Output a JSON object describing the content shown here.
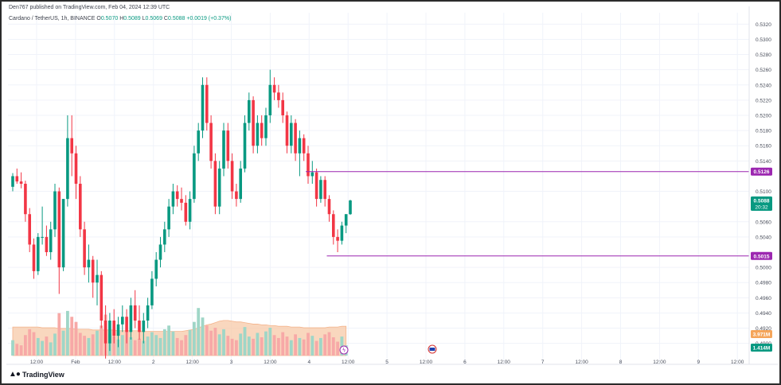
{
  "header": {
    "published": "Den767 published on TradingView.com, Feb 04, 2024 12:39 UTC"
  },
  "symbol": {
    "name": "Cardano / TetherUS, 1h, BINANCE",
    "o_label": "O",
    "o": "0.5070",
    "h_label": "H",
    "h": "0.5089",
    "l_label": "L",
    "l": "0.5069",
    "c_label": "C",
    "c": "0.5088",
    "change": "+0.0019 (+0.37%)"
  },
  "price_labels": {
    "resistance": "0.5126",
    "current": "0.5088",
    "countdown": "20:32",
    "support": "0.5015",
    "volume_ma": "3.971M",
    "volume": "1.414M"
  },
  "footer": {
    "logo_text": "TradingView"
  },
  "colors": {
    "up": "#089981",
    "down": "#f23645",
    "up_volume": "#9fd6c7",
    "down_volume": "#f7a9a7",
    "volume_ma_fill": "#f7c9a8",
    "level_line": "#9c27b0",
    "grid": "#f0f3fa"
  },
  "chart_data": {
    "type": "candlestick",
    "timeframe": "1h",
    "y_ticks": [
      "0.5320",
      "0.5300",
      "0.5280",
      "0.5260",
      "0.5240",
      "0.5220",
      "0.5200",
      "0.5180",
      "0.5160",
      "0.5140",
      "0.5100",
      "0.5060",
      "0.5040",
      "0.5000",
      "0.4980",
      "0.4960",
      "0.4940",
      "0.4920",
      "0.4900"
    ],
    "x_ticks": [
      "12:00",
      "Feb",
      "12:00",
      "2",
      "12:00",
      "3",
      "12:00",
      "4",
      "12:00",
      "5",
      "12:00",
      "6",
      "12:00",
      "7",
      "12:00",
      "8",
      "12:00",
      "9",
      "12:00"
    ],
    "ylim": [
      0.4885,
      0.5335
    ],
    "horizontal_levels": [
      0.5126,
      0.5015
    ],
    "ohlc": [
      [
        0.5106,
        0.5124,
        0.51,
        0.512
      ],
      [
        0.512,
        0.513,
        0.511,
        0.5113
      ],
      [
        0.5113,
        0.5125,
        0.5104,
        0.511
      ],
      [
        0.511,
        0.5114,
        0.506,
        0.507
      ],
      [
        0.507,
        0.5078,
        0.502,
        0.503
      ],
      [
        0.503,
        0.5038,
        0.4985,
        0.4995
      ],
      [
        0.4995,
        0.5045,
        0.499,
        0.504
      ],
      [
        0.504,
        0.508,
        0.503,
        0.504
      ],
      [
        0.504,
        0.5055,
        0.5015,
        0.502
      ],
      [
        0.502,
        0.506,
        0.501,
        0.505
      ],
      [
        0.505,
        0.511,
        0.504,
        0.51
      ],
      [
        0.51,
        0.5105,
        0.4965,
        0.5
      ],
      [
        0.5,
        0.509,
        0.4995,
        0.509
      ],
      [
        0.509,
        0.52,
        0.508,
        0.517
      ],
      [
        0.517,
        0.52,
        0.512,
        0.515
      ],
      [
        0.515,
        0.516,
        0.509,
        0.511
      ],
      [
        0.511,
        0.512,
        0.504,
        0.505
      ],
      [
        0.505,
        0.506,
        0.499,
        0.5
      ],
      [
        0.5,
        0.503,
        0.498,
        0.501
      ],
      [
        0.501,
        0.5015,
        0.496,
        0.498
      ],
      [
        0.498,
        0.501,
        0.495,
        0.499
      ],
      [
        0.499,
        0.4995,
        0.492,
        0.493
      ],
      [
        0.493,
        0.495,
        0.488,
        0.49
      ],
      [
        0.49,
        0.494,
        0.489,
        0.493
      ],
      [
        0.493,
        0.4945,
        0.49,
        0.491
      ],
      [
        0.491,
        0.4935,
        0.4895,
        0.4925
      ],
      [
        0.4925,
        0.495,
        0.4915,
        0.4935
      ],
      [
        0.4935,
        0.4945,
        0.49,
        0.4915
      ],
      [
        0.4915,
        0.496,
        0.4905,
        0.495
      ],
      [
        0.495,
        0.497,
        0.492,
        0.493
      ],
      [
        0.493,
        0.495,
        0.4905,
        0.4915
      ],
      [
        0.4915,
        0.494,
        0.49,
        0.493
      ],
      [
        0.493,
        0.496,
        0.492,
        0.495
      ],
      [
        0.495,
        0.4995,
        0.4945,
        0.4985
      ],
      [
        0.4985,
        0.502,
        0.4975,
        0.501
      ],
      [
        0.501,
        0.504,
        0.5,
        0.503
      ],
      [
        0.503,
        0.506,
        0.502,
        0.505
      ],
      [
        0.505,
        0.509,
        0.504,
        0.508
      ],
      [
        0.508,
        0.511,
        0.507,
        0.51
      ],
      [
        0.51,
        0.5108,
        0.508,
        0.509
      ],
      [
        0.509,
        0.5105,
        0.5075,
        0.5085
      ],
      [
        0.5085,
        0.5095,
        0.5055,
        0.506
      ],
      [
        0.506,
        0.51,
        0.505,
        0.509
      ],
      [
        0.509,
        0.516,
        0.5085,
        0.515
      ],
      [
        0.515,
        0.519,
        0.514,
        0.518
      ],
      [
        0.518,
        0.525,
        0.517,
        0.524
      ],
      [
        0.524,
        0.525,
        0.518,
        0.519
      ],
      [
        0.519,
        0.52,
        0.513,
        0.514
      ],
      [
        0.514,
        0.515,
        0.507,
        0.508
      ],
      [
        0.508,
        0.514,
        0.507,
        0.513
      ],
      [
        0.513,
        0.519,
        0.512,
        0.518
      ],
      [
        0.518,
        0.519,
        0.513,
        0.514
      ],
      [
        0.514,
        0.515,
        0.509,
        0.51
      ],
      [
        0.51,
        0.511,
        0.508,
        0.509
      ],
      [
        0.509,
        0.514,
        0.5085,
        0.513
      ],
      [
        0.513,
        0.52,
        0.5125,
        0.519
      ],
      [
        0.519,
        0.523,
        0.518,
        0.522
      ],
      [
        0.522,
        0.5225,
        0.515,
        0.516
      ],
      [
        0.516,
        0.52,
        0.515,
        0.519
      ],
      [
        0.519,
        0.52,
        0.516,
        0.517
      ],
      [
        0.517,
        0.521,
        0.516,
        0.52
      ],
      [
        0.52,
        0.526,
        0.519,
        0.524
      ],
      [
        0.524,
        0.525,
        0.522,
        0.523
      ],
      [
        0.523,
        0.524,
        0.521,
        0.522
      ],
      [
        0.522,
        0.523,
        0.519,
        0.52
      ],
      [
        0.52,
        0.5205,
        0.515,
        0.516
      ],
      [
        0.516,
        0.52,
        0.515,
        0.519
      ],
      [
        0.519,
        0.5195,
        0.514,
        0.515
      ],
      [
        0.515,
        0.518,
        0.512,
        0.517
      ],
      [
        0.517,
        0.5175,
        0.514,
        0.515
      ],
      [
        0.515,
        0.516,
        0.511,
        0.512
      ],
      [
        0.512,
        0.514,
        0.511,
        0.5125
      ],
      [
        0.5125,
        0.513,
        0.508,
        0.509
      ],
      [
        0.509,
        0.512,
        0.5085,
        0.5115
      ],
      [
        0.5115,
        0.512,
        0.508,
        0.509
      ],
      [
        0.509,
        0.5095,
        0.506,
        0.507
      ],
      [
        0.507,
        0.5075,
        0.503,
        0.504
      ],
      [
        0.504,
        0.505,
        0.502,
        0.5035
      ],
      [
        0.5035,
        0.506,
        0.503,
        0.5055
      ],
      [
        0.5055,
        0.507,
        0.5045,
        0.507
      ],
      [
        0.507,
        0.5089,
        0.5069,
        0.5088
      ]
    ],
    "volume": [
      2.1,
      1.6,
      1.4,
      2.8,
      3.6,
      3.2,
      2.4,
      2.0,
      2.6,
      1.8,
      3.0,
      5.8,
      3.4,
      6.1,
      5.3,
      4.6,
      3.1,
      2.7,
      2.4,
      2.9,
      3.4,
      4.1,
      5.6,
      3.0,
      2.6,
      2.2,
      2.8,
      3.3,
      2.5,
      2.1,
      2.3,
      2.0,
      2.6,
      3.2,
      2.8,
      2.4,
      3.6,
      4.1,
      3.3,
      2.4,
      2.1,
      2.8,
      3.5,
      4.6,
      6.5,
      5.2,
      4.1,
      3.4,
      3.8,
      2.9,
      3.6,
      2.7,
      2.3,
      2.1,
      3.0,
      3.9,
      2.6,
      2.3,
      3.1,
      2.5,
      3.3,
      3.8,
      2.8,
      2.4,
      3.2,
      2.6,
      2.1,
      2.9,
      2.4,
      2.2,
      3.1,
      2.7,
      2.0,
      2.4,
      2.9,
      3.2,
      2.5,
      1.9,
      2.6,
      1.4
    ],
    "volume_ma": [
      3.9,
      3.9,
      3.9,
      3.9,
      3.9,
      3.9,
      3.9,
      3.8,
      3.8,
      3.8,
      3.8,
      3.7,
      3.7,
      3.7,
      3.7,
      3.6,
      3.6,
      3.6,
      3.6,
      3.5,
      3.5,
      3.5,
      3.5,
      3.5,
      3.5,
      3.4,
      3.4,
      3.4,
      3.4,
      3.4,
      3.4,
      3.3,
      3.3,
      3.3,
      3.3,
      3.3,
      3.3,
      3.3,
      3.3,
      3.3,
      3.3,
      3.4,
      3.5,
      3.6,
      3.8,
      4.0,
      4.2,
      4.3,
      4.5,
      4.7,
      4.8,
      4.8,
      4.7,
      4.6,
      4.6,
      4.5,
      4.4,
      4.3,
      4.3,
      4.2,
      4.2,
      4.1,
      4.1,
      4.0,
      4.0,
      4.0,
      3.9,
      3.9,
      3.9,
      3.8,
      3.8,
      3.8,
      3.8,
      3.8,
      3.8,
      3.9,
      3.9,
      3.9,
      4.0,
      4.0
    ]
  }
}
